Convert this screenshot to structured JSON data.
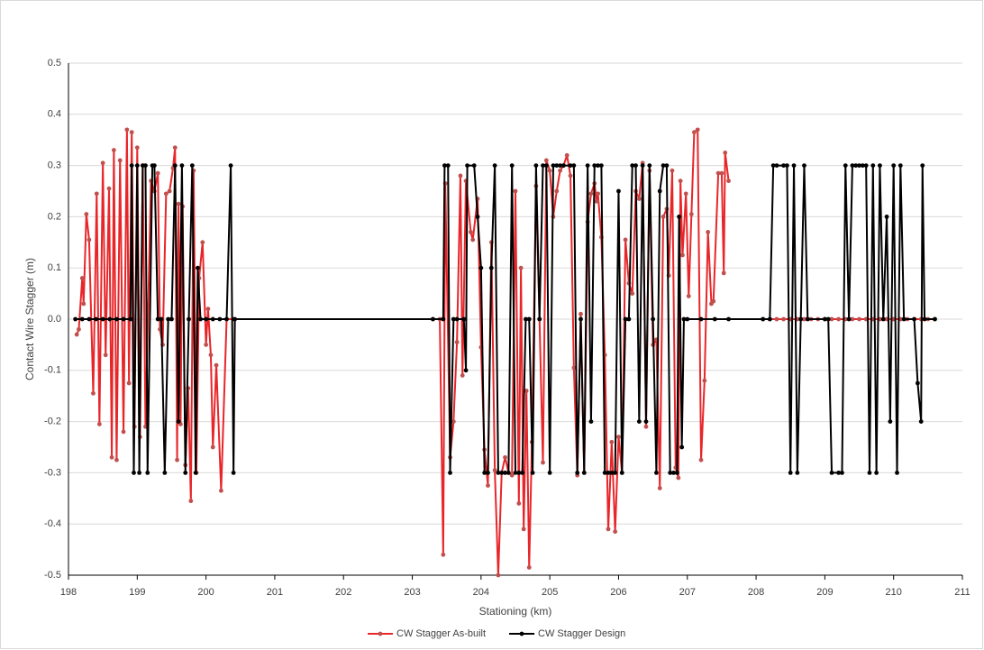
{
  "chart_data": {
    "type": "line",
    "xlabel": "Stationing (km)",
    "ylabel": "Contact Wire Stagger (m)",
    "xlim": [
      198,
      211
    ],
    "xticks": [
      198,
      199,
      200,
      201,
      202,
      203,
      204,
      205,
      206,
      207,
      208,
      209,
      210,
      211
    ],
    "ylim": [
      -0.5,
      0.5
    ],
    "yticks": [
      -0.5,
      -0.4,
      -0.3,
      -0.2,
      -0.1,
      {
        "value": 0,
        "label": "0.0"
      },
      0.1,
      0.2,
      0.3,
      0.4,
      0.5
    ],
    "grid": true,
    "legend": "bottom",
    "series": [
      {
        "name": "CW Stagger As-built",
        "color": "#e8262a",
        "marker_color": "#c0504d",
        "x": [
          198.12,
          198.15,
          198.2,
          198.22,
          198.26,
          198.3,
          198.36,
          198.41,
          198.45,
          198.5,
          198.54,
          198.59,
          198.63,
          198.66,
          198.7,
          198.75,
          198.8,
          198.85,
          198.88,
          198.92,
          198.96,
          199.0,
          199.04,
          199.08,
          199.12,
          199.2,
          199.25,
          199.3,
          199.33,
          199.37,
          199.42,
          199.47,
          199.52,
          199.55,
          199.58,
          199.6,
          199.63,
          199.66,
          199.7,
          199.74,
          199.78,
          199.82,
          199.86,
          199.9,
          199.95,
          200.0,
          200.03,
          200.07,
          200.1,
          200.15,
          200.22,
          200.3,
          200.4,
          202,
          203.3,
          203.4,
          203.45,
          203.48,
          203.55,
          203.6,
          203.65,
          203.7,
          203.73,
          203.78,
          203.85,
          203.88,
          203.95,
          204.0,
          204.05,
          204.1,
          204.15,
          204.2,
          204.25,
          204.3,
          204.35,
          204.4,
          204.45,
          204.5,
          204.55,
          204.58,
          204.62,
          204.66,
          204.7,
          204.74,
          204.8,
          204.85,
          204.9,
          204.95,
          205.0,
          205.05,
          205.1,
          205.15,
          205.2,
          205.25,
          205.3,
          205.35,
          205.4,
          205.45,
          205.5,
          205.55,
          205.6,
          205.65,
          205.68,
          205.7,
          205.75,
          205.8,
          205.85,
          205.9,
          205.95,
          206.0,
          206.05,
          206.1,
          206.15,
          206.2,
          206.25,
          206.3,
          206.35,
          206.4,
          206.45,
          206.5,
          206.55,
          206.6,
          206.65,
          206.7,
          206.73,
          206.78,
          206.83,
          206.87,
          206.9,
          206.93,
          206.98,
          207.02,
          207.06,
          207.1,
          207.15,
          207.2,
          207.25,
          207.3,
          207.35,
          207.38,
          207.45,
          207.5,
          207.53,
          207.55,
          207.6,
          207.85,
          208.1,
          208.2,
          208.3,
          208.4,
          208.5,
          208.6,
          208.7,
          208.8,
          208.9,
          209.0,
          209.1,
          209.2,
          209.3,
          209.4,
          209.5,
          209.6,
          209.7,
          209.8,
          209.9,
          210.0,
          210.1,
          210.2,
          210.3,
          210.4,
          210.5,
          210.6
        ],
        "values": [
          -0.03,
          -0.02,
          0.08,
          0.03,
          0.205,
          0.155,
          -0.145,
          0.245,
          -0.205,
          0.305,
          -0.07,
          0.255,
          -0.27,
          0.33,
          -0.275,
          0.31,
          -0.22,
          0.37,
          -0.125,
          0.365,
          -0.21,
          0.335,
          -0.23,
          0.3,
          -0.21,
          0.27,
          0.25,
          0.285,
          -0.02,
          -0.05,
          0.245,
          0.25,
          0.295,
          0.335,
          -0.275,
          0.225,
          -0.205,
          0.22,
          -0.285,
          -0.135,
          -0.355,
          0.29,
          -0.3,
          0.08,
          0.15,
          -0.05,
          0.02,
          -0.07,
          -0.25,
          -0.09,
          -0.335,
          0,
          0,
          null,
          0,
          0,
          -0.46,
          0.265,
          -0.27,
          -0.2,
          -0.045,
          0.28,
          -0.11,
          0.27,
          0.17,
          0.155,
          0.235,
          -0.055,
          -0.255,
          -0.325,
          0.15,
          -0.295,
          -0.5,
          -0.3,
          -0.27,
          -0.3,
          -0.305,
          0.25,
          -0.36,
          0.1,
          -0.41,
          -0.14,
          -0.485,
          -0.24,
          0.26,
          0,
          -0.28,
          0.31,
          0.29,
          0.2,
          0.25,
          0.29,
          0.3,
          0.32,
          0.28,
          -0.095,
          -0.305,
          0.01,
          -0.3,
          0.19,
          0.245,
          0.265,
          0.23,
          0.245,
          0.16,
          -0.07,
          -0.41,
          -0.24,
          -0.415,
          -0.23,
          -0.3,
          0.155,
          0.07,
          0.05,
          0.25,
          0.235,
          0.305,
          -0.21,
          0.29,
          -0.05,
          -0.04,
          -0.33,
          0.2,
          0.215,
          0.085,
          0.29,
          -0.29,
          -0.31,
          0.27,
          0.125,
          0.245,
          0.045,
          0.205,
          0.365,
          0.37,
          -0.275,
          -0.12,
          0.17,
          0.03,
          0.035,
          0.285,
          0.285,
          0.09,
          0.325,
          0.27,
          null,
          0,
          0,
          0,
          0,
          0,
          0,
          0,
          0,
          0,
          0,
          0,
          0,
          0,
          0,
          0,
          0,
          0,
          0,
          0,
          0,
          0,
          0,
          0,
          0,
          0,
          0
        ]
      },
      {
        "name": "CW Stagger Design",
        "color": "#000000",
        "marker_color": "#000000",
        "x": [
          198.1,
          198.2,
          198.3,
          198.4,
          198.5,
          198.6,
          198.7,
          198.8,
          198.9,
          198.92,
          198.95,
          199.0,
          199.03,
          199.08,
          199.12,
          199.15,
          199.22,
          199.25,
          199.3,
          199.35,
          199.4,
          199.45,
          199.5,
          199.55,
          199.6,
          199.65,
          199.7,
          199.75,
          199.8,
          199.85,
          199.88,
          199.92,
          200.0,
          200.1,
          200.2,
          200.3,
          200.36,
          200.4,
          200.42,
          203.3,
          203.45,
          203.47,
          203.52,
          203.55,
          203.6,
          203.65,
          203.75,
          203.78,
          203.8,
          203.9,
          203.95,
          204.0,
          204.05,
          204.1,
          204.15,
          204.2,
          204.25,
          204.3,
          204.35,
          204.4,
          204.45,
          204.5,
          204.55,
          204.6,
          204.65,
          204.7,
          204.75,
          204.8,
          204.85,
          204.9,
          204.95,
          205.0,
          205.05,
          205.1,
          205.15,
          205.2,
          205.3,
          205.35,
          205.4,
          205.45,
          205.5,
          205.55,
          205.6,
          205.65,
          205.7,
          205.75,
          205.8,
          205.85,
          205.9,
          205.95,
          206.0,
          206.05,
          206.1,
          206.15,
          206.2,
          206.25,
          206.3,
          206.35,
          206.4,
          206.45,
          206.5,
          206.55,
          206.6,
          206.65,
          206.7,
          206.75,
          206.8,
          206.85,
          206.88,
          206.92,
          206.95,
          207.0,
          207.2,
          207.4,
          207.6,
          208.1,
          208.2,
          208.25,
          208.3,
          208.4,
          208.45,
          208.5,
          208.55,
          208.6,
          208.65,
          208.7,
          208.75,
          209.0,
          209.05,
          209.1,
          209.2,
          209.25,
          209.3,
          209.35,
          209.4,
          209.45,
          209.5,
          209.55,
          209.6,
          209.65,
          209.7,
          209.75,
          209.8,
          209.85,
          209.9,
          209.95,
          210.0,
          210.05,
          210.1,
          210.15,
          210.3,
          210.35,
          210.4,
          210.42,
          210.45,
          210.6
        ],
        "values": [
          0,
          0,
          0,
          0,
          0,
          0,
          0,
          0,
          0,
          0.3,
          -0.3,
          0.3,
          -0.3,
          0.3,
          0.3,
          -0.3,
          0.3,
          0.3,
          0,
          0,
          -0.3,
          0,
          0,
          0.3,
          -0.2,
          0.3,
          -0.3,
          0,
          0.3,
          -0.3,
          0.1,
          0,
          0,
          0,
          0,
          0,
          0.3,
          -0.3,
          0,
          0,
          0,
          0.3,
          0.3,
          -0.3,
          0,
          0,
          0,
          -0.1,
          0.3,
          0.3,
          0.2,
          0.1,
          -0.3,
          -0.3,
          0.1,
          0.3,
          -0.3,
          -0.3,
          -0.3,
          -0.3,
          0.3,
          -0.3,
          -0.3,
          -0.3,
          0,
          0,
          -0.3,
          0.3,
          0,
          0.3,
          0.3,
          -0.3,
          0.3,
          0.3,
          0.3,
          0.3,
          0.3,
          0.3,
          -0.3,
          0,
          -0.3,
          0.3,
          -0.2,
          0.3,
          0.3,
          0.3,
          -0.3,
          -0.3,
          -0.3,
          -0.3,
          0.25,
          -0.3,
          0,
          0,
          0.3,
          0.3,
          -0.2,
          0.3,
          -0.2,
          0.3,
          0,
          -0.3,
          0.25,
          0.3,
          0.3,
          -0.3,
          -0.3,
          -0.3,
          0.2,
          -0.25,
          0,
          0,
          0,
          0,
          0,
          0,
          0,
          0.3,
          0.3,
          0.3,
          0.3,
          -0.3,
          0.3,
          -0.3,
          0,
          0.3,
          0,
          0,
          0,
          -0.3,
          -0.3,
          -0.3,
          0.3,
          0,
          0.3,
          0.3,
          0.3,
          0.3,
          0.3,
          -0.3,
          0.3,
          -0.3,
          0.3,
          0,
          0.2,
          -0.2,
          0.3,
          -0.3,
          0.3,
          0,
          0,
          -0.125,
          -0.2,
          0.3,
          0,
          0
        ]
      }
    ]
  }
}
